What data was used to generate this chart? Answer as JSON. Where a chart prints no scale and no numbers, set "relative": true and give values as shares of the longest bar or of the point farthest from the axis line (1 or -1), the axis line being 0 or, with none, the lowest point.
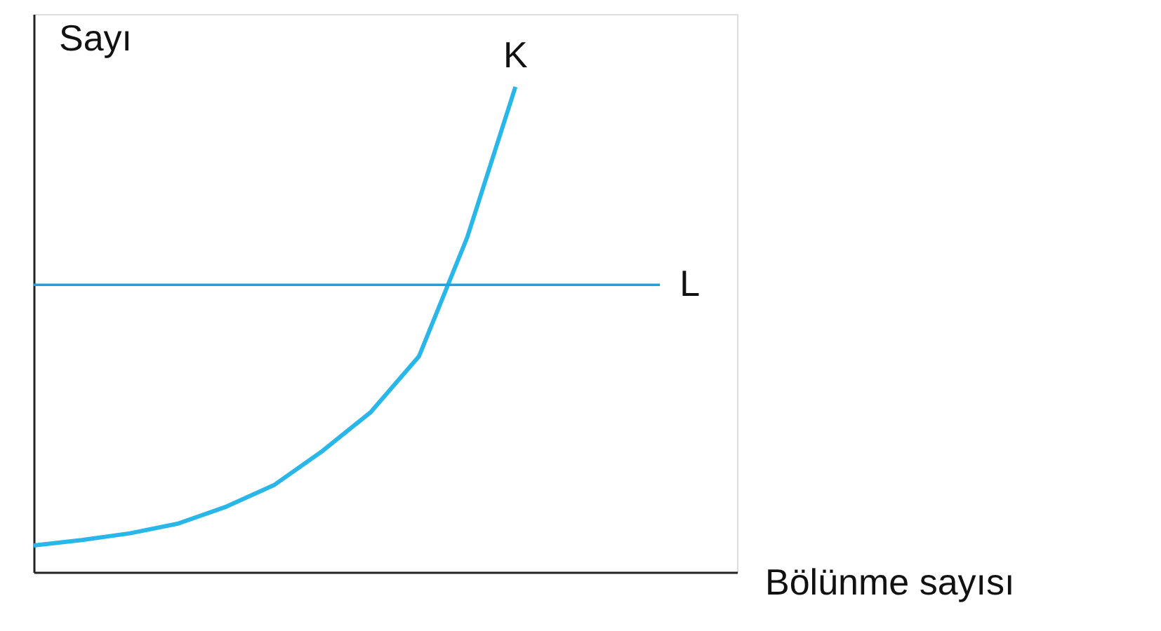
{
  "chart_data": {
    "type": "line",
    "relative": true,
    "xlabel": "Bölünme sayısı",
    "ylabel": "Sayı",
    "grid": false,
    "legend": false,
    "categories": [
      null,
      null,
      null,
      null,
      null,
      null,
      null,
      null,
      null,
      null,
      null,
      null,
      null,
      null
    ],
    "series": [
      {
        "name": "K",
        "color": "#29b6e8",
        "values": [
          0.055,
          0.066,
          0.08,
          0.1,
          0.135,
          0.18,
          0.25,
          0.33,
          0.445,
          0.69,
          1.0,
          null,
          null,
          null
        ]
      },
      {
        "name": "L",
        "color": "#1aa3dc",
        "values": [
          0.592,
          0.592,
          0.592,
          0.592,
          0.592,
          0.592,
          0.592,
          0.592,
          0.592,
          0.592,
          0.592,
          0.592,
          0.592,
          0.592
        ]
      }
    ]
  }
}
